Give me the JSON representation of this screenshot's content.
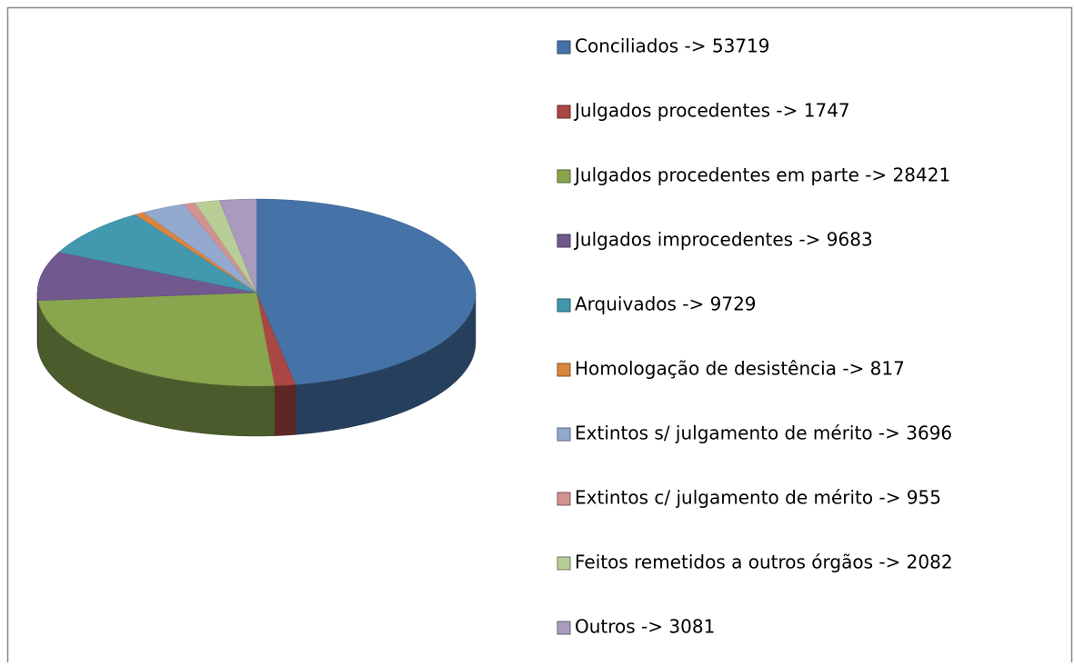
{
  "chart_data": {
    "type": "pie",
    "legend": "right",
    "categories": [
      "Conciliados -> 53719",
      "Julgados procedentes -> 1747",
      "Julgados procedentes em parte -> 28421",
      "Julgados improcedentes -> 9683",
      "Arquivados -> 9729",
      "Homologação de desistência -> 817",
      "Extintos s/ julgamento de mérito -> 3696",
      "Extintos c/ julgamento de mérito -> 955",
      "Feitos remetidos a outros órgãos -> 2082",
      "Outros -> 3081"
    ],
    "values": [
      53719,
      1747,
      28421,
      9683,
      9729,
      817,
      3696,
      955,
      2082,
      3081
    ],
    "colors": [
      "#4572a7",
      "#aa4643",
      "#89a54e",
      "#71588f",
      "#4198af",
      "#db843d",
      "#93a9cf",
      "#d19392",
      "#b9cd96",
      "#a99bbd"
    ]
  }
}
